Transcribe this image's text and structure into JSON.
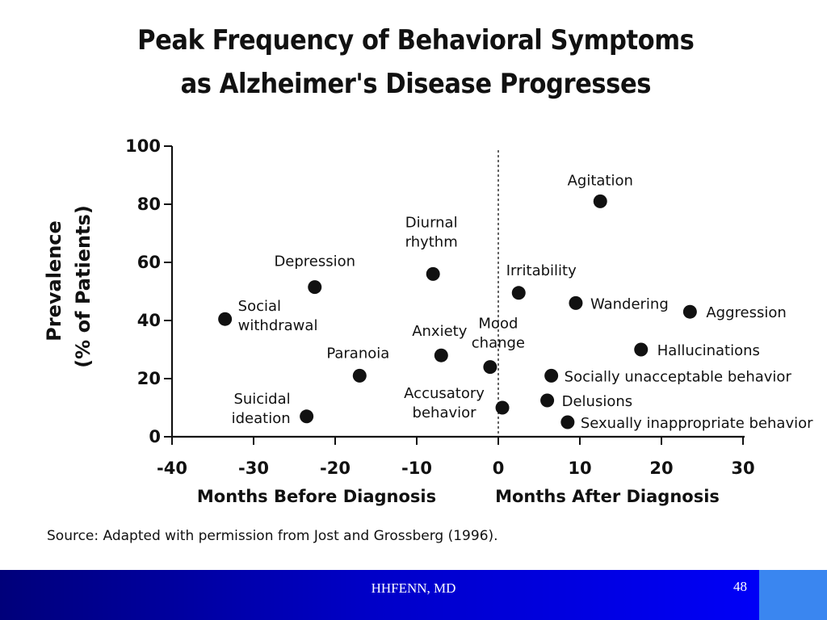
{
  "slide": {
    "title_line1": "Peak Frequency of Behavioral Symptoms",
    "title_line2": "as Alzheimer's Disease Progresses",
    "source": "Source: Adapted with permission from Jost and Grossberg  (1996).",
    "footer": "HHFENN, MD",
    "page_number": "48",
    "colors": {
      "footer_bar": "#0000c8",
      "footer_box": "#3a86f0",
      "points": "#111111"
    }
  },
  "chart_data": {
    "type": "scatter",
    "title": "Peak Frequency of Behavioral Symptoms as Alzheimer's Disease Progresses",
    "ylabel": "Prevalence (% of Patients)",
    "xlabel_left": "Months Before Diagnosis",
    "xlabel_right": "Months After Diagnosis",
    "xlim": [
      -40,
      30
    ],
    "ylim": [
      0,
      100
    ],
    "xticks": [
      -40,
      -30,
      -20,
      -10,
      0,
      10,
      20,
      30
    ],
    "yticks": [
      0,
      20,
      40,
      60,
      80,
      100
    ],
    "reference_line_x": 0,
    "grid": false,
    "points": [
      {
        "label": "Social withdrawal",
        "x": -33.5,
        "y": 40.5
      },
      {
        "label": "Depression",
        "x": -22.5,
        "y": 51.5
      },
      {
        "label": "Suicidal ideation",
        "x": -23.5,
        "y": 7
      },
      {
        "label": "Paranoia",
        "x": -17,
        "y": 21
      },
      {
        "label": "Diurnal rhythm",
        "x": -8,
        "y": 56
      },
      {
        "label": "Anxiety",
        "x": -7,
        "y": 28
      },
      {
        "label": "Mood change",
        "x": -1,
        "y": 24
      },
      {
        "label": "Accusatory behavior",
        "x": 0.5,
        "y": 10
      },
      {
        "label": "Irritability",
        "x": 2.5,
        "y": 49.5
      },
      {
        "label": "Agitation",
        "x": 12.5,
        "y": 81
      },
      {
        "label": "Wandering",
        "x": 9.5,
        "y": 46
      },
      {
        "label": "Aggression",
        "x": 23.5,
        "y": 43
      },
      {
        "label": "Hallucinations",
        "x": 17.5,
        "y": 30
      },
      {
        "label": "Socially unacceptable behavior",
        "x": 6.5,
        "y": 21
      },
      {
        "label": "Delusions",
        "x": 6,
        "y": 12.5
      },
      {
        "label": "Sexually inappropriate behavior",
        "x": 8.5,
        "y": 5
      }
    ]
  }
}
